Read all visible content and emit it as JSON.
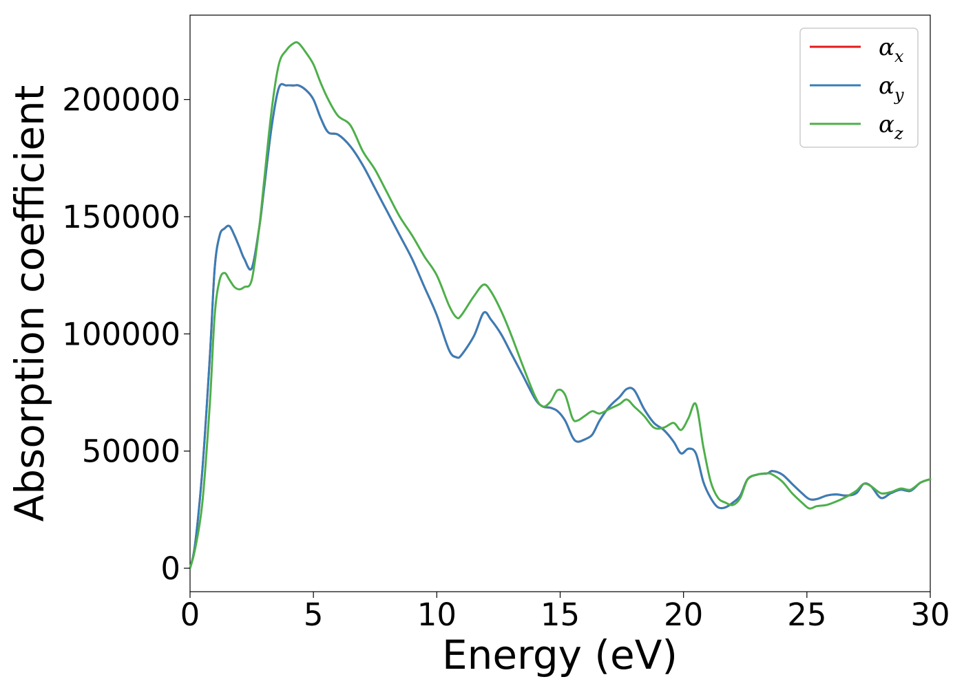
{
  "chart_data": {
    "type": "line",
    "title": "",
    "xlabel": "Energy (eV)",
    "ylabel": "Absorption coefficient",
    "xlim": [
      0,
      30
    ],
    "ylim": [
      -10000,
      236000
    ],
    "x_ticks": [
      0,
      5,
      10,
      15,
      20,
      25,
      30
    ],
    "x_tick_labels": [
      "0",
      "5",
      "10",
      "15",
      "20",
      "25",
      "30"
    ],
    "y_ticks": [
      0,
      50000,
      100000,
      150000,
      200000
    ],
    "y_tick_labels": [
      "0",
      "50000",
      "100000",
      "150000",
      "200000"
    ],
    "grid": false,
    "legend_position": "top-right",
    "series": [
      {
        "name": "αx",
        "legend_base": "α",
        "legend_sub": "x",
        "color": "#e41a1c",
        "x": [
          0,
          0.2,
          0.5,
          0.8,
          1.0,
          1.2,
          1.4,
          1.6,
          1.8,
          2.0,
          2.2,
          2.5,
          2.8,
          3.0,
          3.3,
          3.6,
          3.9,
          4.2,
          4.4,
          4.7,
          5.0,
          5.3,
          5.6,
          6.0,
          6.5,
          7.0,
          7.5,
          8.0,
          8.5,
          9.0,
          9.5,
          10.0,
          10.5,
          10.8,
          11.0,
          11.5,
          11.9,
          12.2,
          12.6,
          13.0,
          13.5,
          14.0,
          14.3,
          14.6,
          14.9,
          15.2,
          15.5,
          15.7,
          16.0,
          16.3,
          16.6,
          17.0,
          17.4,
          17.7,
          18.0,
          18.4,
          18.8,
          19.2,
          19.6,
          19.9,
          20.2,
          20.5,
          20.8,
          21.1,
          21.4,
          21.7,
          22.0,
          22.3,
          22.6,
          23.0,
          23.4,
          23.6,
          24.0,
          24.4,
          24.8,
          25.1,
          25.4,
          25.8,
          26.2,
          26.6,
          27.0,
          27.3,
          27.6,
          28.0,
          28.4,
          28.8,
          29.2,
          29.6,
          30.0
        ],
        "values": [
          0,
          10000,
          42000,
          90000,
          128000,
          142000,
          145000,
          146000,
          142000,
          137000,
          132000,
          128000,
          145000,
          162000,
          188000,
          205000,
          206000,
          206000,
          206000,
          204000,
          200000,
          192000,
          186000,
          185000,
          180000,
          172000,
          162000,
          152000,
          142000,
          132000,
          120000,
          108000,
          93000,
          90000,
          91000,
          99000,
          109000,
          106000,
          100000,
          92000,
          82000,
          72000,
          69000,
          68500,
          67000,
          63000,
          56000,
          54000,
          55000,
          57000,
          63000,
          69000,
          73000,
          76500,
          76000,
          68000,
          62000,
          59000,
          54000,
          49000,
          51000,
          49000,
          37000,
          30000,
          26000,
          26000,
          28000,
          31000,
          38000,
          40000,
          40500,
          41500,
          40000,
          36000,
          32000,
          29500,
          29500,
          31000,
          31500,
          31000,
          32000,
          36000,
          35000,
          30000,
          32000,
          33500,
          33000,
          36500,
          38000
        ]
      },
      {
        "name": "αy",
        "legend_base": "α",
        "legend_sub": "y",
        "color": "#377eb8",
        "x": [
          0,
          0.2,
          0.5,
          0.8,
          1.0,
          1.2,
          1.4,
          1.6,
          1.8,
          2.0,
          2.2,
          2.5,
          2.8,
          3.0,
          3.3,
          3.6,
          3.9,
          4.2,
          4.4,
          4.7,
          5.0,
          5.3,
          5.6,
          6.0,
          6.5,
          7.0,
          7.5,
          8.0,
          8.5,
          9.0,
          9.5,
          10.0,
          10.5,
          10.8,
          11.0,
          11.5,
          11.9,
          12.2,
          12.6,
          13.0,
          13.5,
          14.0,
          14.3,
          14.6,
          14.9,
          15.2,
          15.5,
          15.7,
          16.0,
          16.3,
          16.6,
          17.0,
          17.4,
          17.7,
          18.0,
          18.4,
          18.8,
          19.2,
          19.6,
          19.9,
          20.2,
          20.5,
          20.8,
          21.1,
          21.4,
          21.7,
          22.0,
          22.3,
          22.6,
          23.0,
          23.4,
          23.6,
          24.0,
          24.4,
          24.8,
          25.1,
          25.4,
          25.8,
          26.2,
          26.6,
          27.0,
          27.3,
          27.6,
          28.0,
          28.4,
          28.8,
          29.2,
          29.6,
          30.0
        ],
        "values": [
          0,
          10000,
          42000,
          90000,
          128000,
          142000,
          145000,
          146000,
          142000,
          137000,
          132000,
          128000,
          145000,
          162000,
          188000,
          205000,
          206000,
          206000,
          206000,
          204000,
          200000,
          192000,
          186000,
          185000,
          180000,
          172000,
          162000,
          152000,
          142000,
          132000,
          120000,
          108000,
          93000,
          90000,
          91000,
          99000,
          109000,
          106000,
          100000,
          92000,
          82000,
          72000,
          69000,
          68500,
          67000,
          63000,
          56000,
          54000,
          55000,
          57000,
          63000,
          69000,
          73000,
          76500,
          76000,
          68000,
          62000,
          59000,
          54000,
          49000,
          51000,
          49000,
          37000,
          30000,
          26000,
          26000,
          28000,
          31000,
          38000,
          40000,
          40500,
          41500,
          40000,
          36000,
          32000,
          29500,
          29500,
          31000,
          31500,
          31000,
          32000,
          36000,
          35000,
          30000,
          32000,
          33500,
          33000,
          36500,
          38000
        ]
      },
      {
        "name": "αz",
        "legend_base": "α",
        "legend_sub": "z",
        "color": "#4daf4a",
        "x": [
          0,
          0.2,
          0.5,
          0.8,
          1.0,
          1.2,
          1.4,
          1.6,
          1.8,
          2.0,
          2.2,
          2.5,
          2.8,
          3.0,
          3.3,
          3.6,
          3.9,
          4.2,
          4.4,
          4.7,
          5.0,
          5.3,
          5.6,
          6.0,
          6.5,
          7.0,
          7.5,
          8.0,
          8.5,
          9.0,
          9.5,
          10.0,
          10.5,
          10.8,
          11.0,
          11.5,
          11.9,
          12.2,
          12.6,
          13.0,
          13.5,
          14.0,
          14.3,
          14.6,
          14.9,
          15.2,
          15.5,
          15.7,
          16.0,
          16.3,
          16.6,
          17.0,
          17.4,
          17.7,
          18.0,
          18.4,
          18.8,
          19.2,
          19.6,
          19.9,
          20.2,
          20.5,
          20.8,
          21.1,
          21.4,
          21.7,
          22.0,
          22.3,
          22.6,
          23.0,
          23.4,
          23.6,
          24.0,
          24.4,
          24.8,
          25.1,
          25.4,
          25.8,
          26.2,
          26.6,
          27.0,
          27.3,
          27.6,
          28.0,
          28.4,
          28.8,
          29.2,
          29.6,
          30.0
        ],
        "values": [
          0,
          8000,
          28000,
          70000,
          108000,
          123000,
          126000,
          123000,
          120000,
          119000,
          120000,
          123000,
          145000,
          165000,
          195000,
          215000,
          221000,
          224000,
          224000,
          220000,
          215000,
          207000,
          200000,
          193000,
          189000,
          178000,
          170000,
          160000,
          150000,
          142000,
          133000,
          125000,
          112000,
          107000,
          108000,
          116000,
          121000,
          118000,
          110000,
          100000,
          86000,
          73000,
          69000,
          71000,
          76000,
          74000,
          64000,
          63000,
          65000,
          67000,
          66000,
          68000,
          70000,
          72000,
          69000,
          65000,
          60000,
          60000,
          62000,
          59000,
          64000,
          70000,
          52000,
          37000,
          30000,
          28000,
          27000,
          30000,
          38000,
          40000,
          40500,
          40000,
          37000,
          32000,
          28000,
          25500,
          26500,
          27000,
          28500,
          30500,
          33000,
          36000,
          35000,
          32000,
          32500,
          34000,
          33500,
          36500,
          38000
        ]
      }
    ]
  }
}
